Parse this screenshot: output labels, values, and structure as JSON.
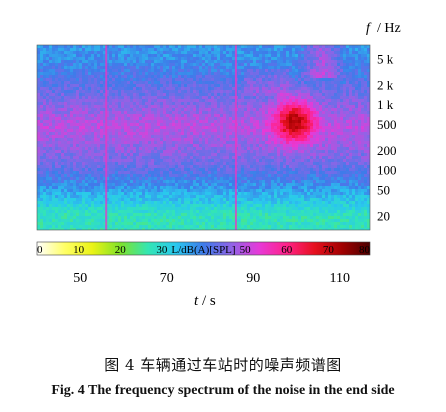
{
  "chart_data": {
    "type": "heatmap",
    "title": "",
    "xlabel_symbol": "t",
    "xlabel_unit": "/ s",
    "ylabel_symbol": "f",
    "ylabel_unit": "/ Hz",
    "x_ticks": [
      50,
      70,
      90,
      110
    ],
    "xlim": [
      40,
      117
    ],
    "y_ticks": [
      {
        "label": "5 k",
        "value": 5000
      },
      {
        "label": "2 k",
        "value": 2000
      },
      {
        "label": "1 k",
        "value": 1000
      },
      {
        "label": "500",
        "value": 500
      },
      {
        "label": "200",
        "value": 200
      },
      {
        "label": "100",
        "value": 100
      },
      {
        "label": "50",
        "value": 50
      },
      {
        "label": "20",
        "value": 20
      }
    ],
    "ylim": [
      12,
      8000
    ],
    "y_scale": "log",
    "colorbar": {
      "ticks": [
        0,
        10,
        20,
        30,
        50,
        60,
        70,
        80
      ],
      "label": "L/dB(A)[SPL]",
      "range": [
        0,
        80
      ],
      "colors": [
        "#ffffff",
        "#ffff66",
        "#eaf316",
        "#7fe22a",
        "#33e6b3",
        "#29c8ee",
        "#3e7bea",
        "#8f64e6",
        "#e63ad8",
        "#ff2288",
        "#e6101e",
        "#a10000",
        "#4a0000"
      ]
    },
    "band_levels": [
      {
        "f_min": 12,
        "f_max": 35,
        "level": 28
      },
      {
        "f_min": 35,
        "f_max": 90,
        "level": 38
      },
      {
        "f_min": 90,
        "f_max": 160,
        "level": 44
      },
      {
        "f_min": 160,
        "f_max": 1300,
        "level": 50
      },
      {
        "f_min": 1300,
        "f_max": 3500,
        "level": 42
      },
      {
        "f_min": 3500,
        "f_max": 8000,
        "level": 38
      }
    ],
    "hotspot": {
      "t_range": [
        95,
        104
      ],
      "f_range": [
        250,
        1200
      ],
      "peak_level": 72
    },
    "vertical_events_t": [
      56,
      86
    ]
  },
  "captions": {
    "chinese": "图 4  车辆通过车站时的噪声频谱图",
    "english": "Fig. 4  The frequency spectrum of the noise in the end side"
  }
}
